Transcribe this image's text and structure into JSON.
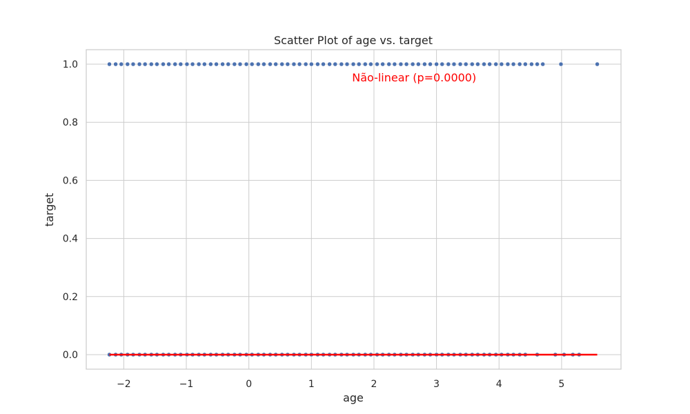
{
  "chart_data": {
    "type": "scatter",
    "title": "Scatter Plot of age vs. target",
    "xlabel": "age",
    "ylabel": "target",
    "xlim": [
      -2.6,
      5.95
    ],
    "ylim": [
      -0.05,
      1.05
    ],
    "xticks": [
      {
        "value": -2,
        "label": "−2"
      },
      {
        "value": -1,
        "label": "−1"
      },
      {
        "value": 0,
        "label": "0"
      },
      {
        "value": 1,
        "label": "1"
      },
      {
        "value": 2,
        "label": "2"
      },
      {
        "value": 3,
        "label": "3"
      },
      {
        "value": 4,
        "label": "4"
      },
      {
        "value": 5,
        "label": "5"
      }
    ],
    "yticks": [
      {
        "value": 0.0,
        "label": "0.0"
      },
      {
        "value": 0.2,
        "label": "0.2"
      },
      {
        "value": 0.4,
        "label": "0.4"
      },
      {
        "value": 0.6,
        "label": "0.6"
      },
      {
        "value": 0.8,
        "label": "0.8"
      },
      {
        "value": 1.0,
        "label": "1.0"
      }
    ],
    "grid": true,
    "series": [
      {
        "color": "#4c72b0",
        "y": 1,
        "x": [
          -2.23,
          -2.13,
          -2.04,
          -1.94,
          -1.85,
          -1.75,
          -1.66,
          -1.56,
          -1.47,
          -1.37,
          -1.28,
          -1.18,
          -1.09,
          -0.99,
          -0.9,
          -0.8,
          -0.71,
          -0.61,
          -0.52,
          -0.42,
          -0.33,
          -0.23,
          -0.14,
          -0.04,
          0.05,
          0.15,
          0.24,
          0.34,
          0.43,
          0.53,
          0.62,
          0.72,
          0.81,
          0.91,
          1.0,
          1.1,
          1.19,
          1.29,
          1.38,
          1.48,
          1.57,
          1.67,
          1.76,
          1.86,
          1.95,
          2.05,
          2.14,
          2.24,
          2.33,
          2.43,
          2.52,
          2.62,
          2.71,
          2.81,
          2.9,
          3.0,
          3.09,
          3.19,
          3.28,
          3.38,
          3.47,
          3.57,
          3.66,
          3.76,
          3.85,
          3.95,
          4.04,
          4.14,
          4.23,
          4.33,
          4.42,
          4.52,
          4.61,
          4.7,
          4.99,
          5.57
        ]
      },
      {
        "color": "#4c72b0",
        "y": 0,
        "x": [
          -2.23,
          -2.13,
          -2.04,
          -1.94,
          -1.85,
          -1.75,
          -1.66,
          -1.56,
          -1.47,
          -1.37,
          -1.28,
          -1.18,
          -1.09,
          -0.99,
          -0.9,
          -0.8,
          -0.71,
          -0.61,
          -0.52,
          -0.42,
          -0.33,
          -0.23,
          -0.14,
          -0.04,
          0.05,
          0.15,
          0.24,
          0.34,
          0.43,
          0.53,
          0.62,
          0.72,
          0.81,
          0.91,
          1.0,
          1.1,
          1.19,
          1.29,
          1.38,
          1.48,
          1.57,
          1.67,
          1.76,
          1.86,
          1.95,
          2.05,
          2.14,
          2.24,
          2.33,
          2.43,
          2.52,
          2.62,
          2.71,
          2.81,
          2.9,
          3.0,
          3.09,
          3.19,
          3.28,
          3.38,
          3.47,
          3.57,
          3.66,
          3.76,
          3.85,
          3.95,
          4.04,
          4.14,
          4.23,
          4.33,
          4.42,
          4.61,
          4.9,
          5.04,
          5.18,
          5.28
        ]
      }
    ],
    "fit_line": {
      "color": "#ff0000",
      "x": [
        -2.23,
        5.57
      ],
      "y": [
        0.0,
        0.0
      ]
    },
    "annotation": {
      "text": "Não-linear (p=0.0000)",
      "color": "#ff0000",
      "x": 1.65,
      "y": 0.955
    }
  }
}
